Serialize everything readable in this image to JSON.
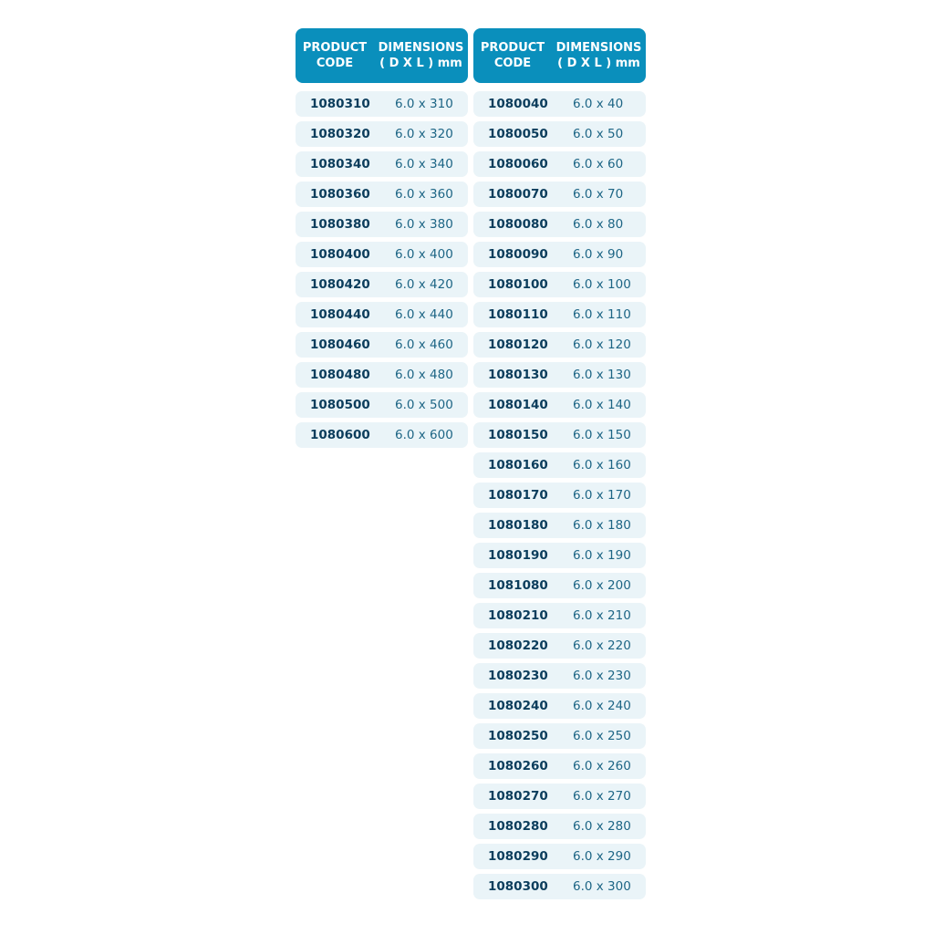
{
  "header": {
    "code": "PRODUCT CODE",
    "dimensions": "DIMENSIONS ( D X L ) mm"
  },
  "colors": {
    "header_bg": "#0a8fbc",
    "row_bg": "#eaf4f8",
    "code_text": "#0b3d5c",
    "dim_text": "#1d6585"
  },
  "left_table": [
    {
      "code": "1080310",
      "dim": "6.0 x 310"
    },
    {
      "code": "1080320",
      "dim": "6.0 x 320"
    },
    {
      "code": "1080340",
      "dim": "6.0 x 340"
    },
    {
      "code": "1080360",
      "dim": "6.0 x 360"
    },
    {
      "code": "1080380",
      "dim": "6.0 x 380"
    },
    {
      "code": "1080400",
      "dim": "6.0 x 400"
    },
    {
      "code": "1080420",
      "dim": "6.0 x 420"
    },
    {
      "code": "1080440",
      "dim": "6.0 x 440"
    },
    {
      "code": "1080460",
      "dim": "6.0 x 460"
    },
    {
      "code": "1080480",
      "dim": "6.0 x 480"
    },
    {
      "code": "1080500",
      "dim": "6.0 x 500"
    },
    {
      "code": "1080600",
      "dim": "6.0 x 600"
    }
  ],
  "right_table": [
    {
      "code": "1080040",
      "dim": "6.0 x 40"
    },
    {
      "code": "1080050",
      "dim": "6.0 x 50"
    },
    {
      "code": "1080060",
      "dim": "6.0 x 60"
    },
    {
      "code": "1080070",
      "dim": "6.0 x 70"
    },
    {
      "code": "1080080",
      "dim": "6.0 x 80"
    },
    {
      "code": "1080090",
      "dim": "6.0 x 90"
    },
    {
      "code": "1080100",
      "dim": "6.0 x 100"
    },
    {
      "code": "1080110",
      "dim": "6.0 x 110"
    },
    {
      "code": "1080120",
      "dim": "6.0 x 120"
    },
    {
      "code": "1080130",
      "dim": "6.0 x 130"
    },
    {
      "code": "1080140",
      "dim": "6.0 x 140"
    },
    {
      "code": "1080150",
      "dim": "6.0 x 150"
    },
    {
      "code": "1080160",
      "dim": "6.0 x 160"
    },
    {
      "code": "1080170",
      "dim": "6.0 x 170"
    },
    {
      "code": "1080180",
      "dim": "6.0 x 180"
    },
    {
      "code": "1080190",
      "dim": "6.0 x 190"
    },
    {
      "code": "1081080",
      "dim": "6.0 x 200"
    },
    {
      "code": "1080210",
      "dim": "6.0 x 210"
    },
    {
      "code": "1080220",
      "dim": "6.0 x 220"
    },
    {
      "code": "1080230",
      "dim": "6.0 x 230"
    },
    {
      "code": "1080240",
      "dim": "6.0 x 240"
    },
    {
      "code": "1080250",
      "dim": "6.0 x 250"
    },
    {
      "code": "1080260",
      "dim": "6.0 x 260"
    },
    {
      "code": "1080270",
      "dim": "6.0 x 270"
    },
    {
      "code": "1080280",
      "dim": "6.0 x 280"
    },
    {
      "code": "1080290",
      "dim": "6.0 x 290"
    },
    {
      "code": "1080300",
      "dim": "6.0 x 300"
    }
  ]
}
